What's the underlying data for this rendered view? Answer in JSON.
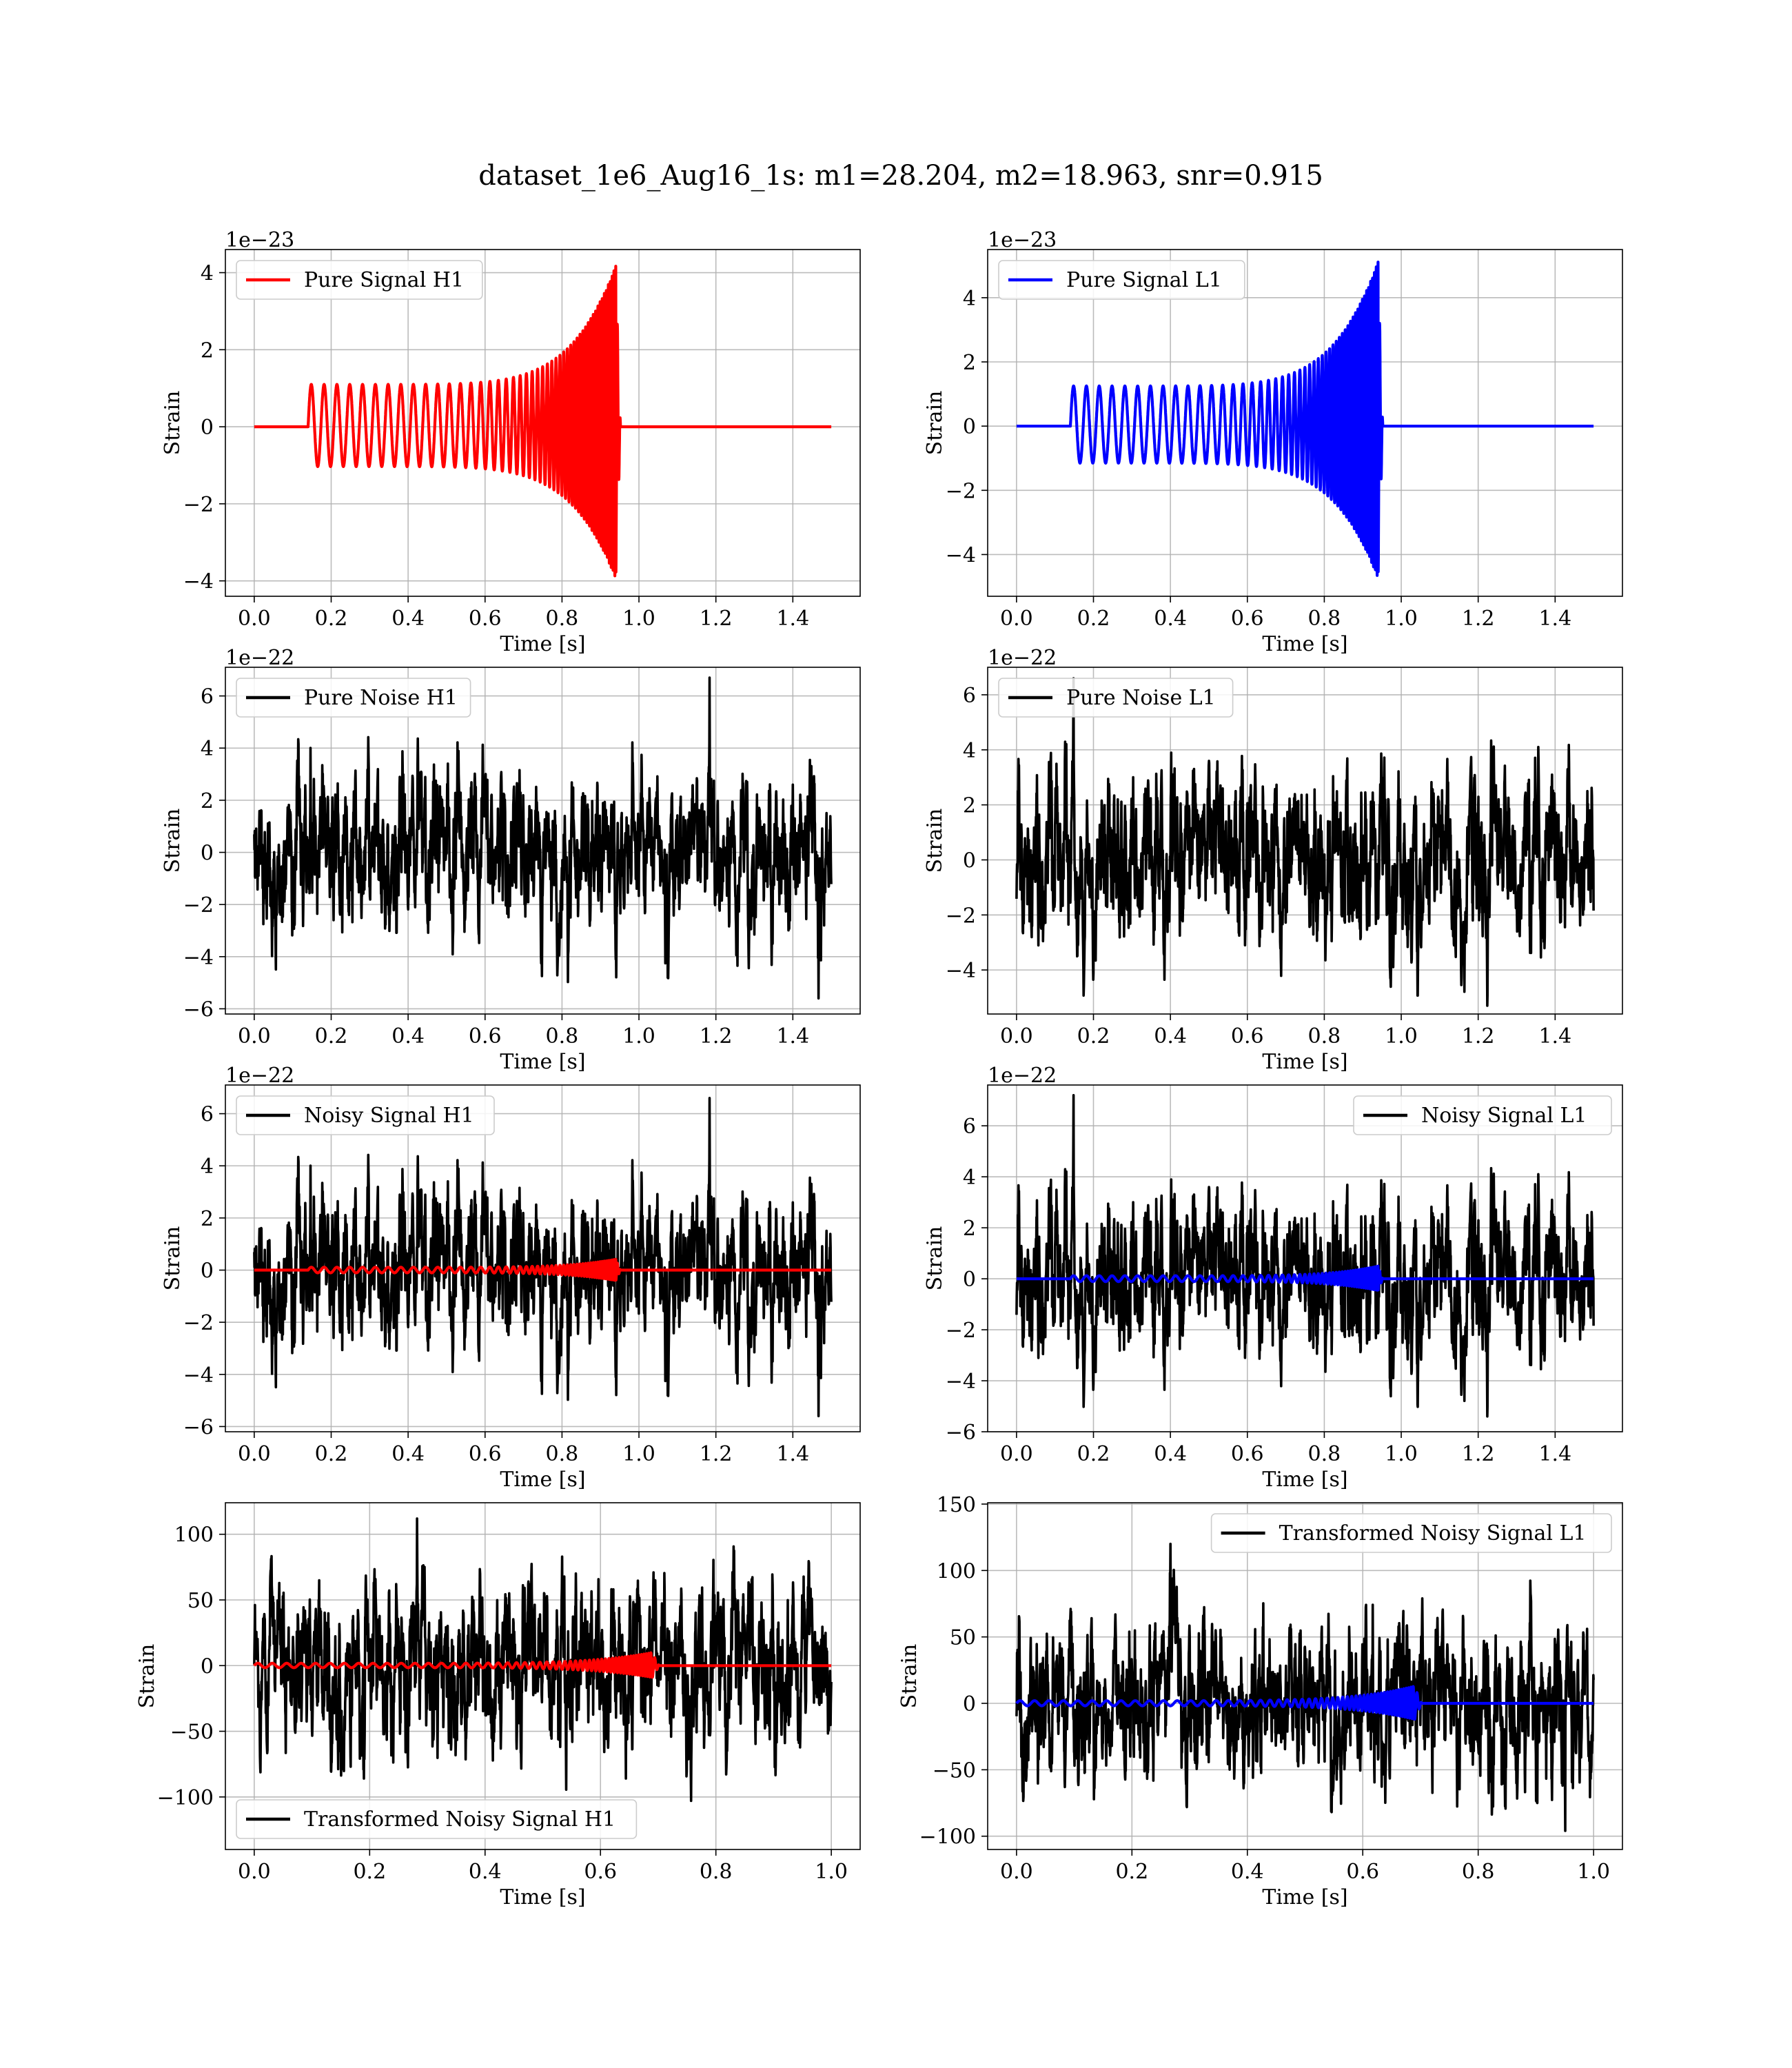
{
  "figure": {
    "suptitle": "dataset_1e6_Aug16_1s: m1=28.204, m2=18.963, snr=0.915"
  },
  "chart_data": [
    {
      "id": "pure-signal-h1",
      "type": "line",
      "kind": "signal",
      "xlabel": "Time [s]",
      "ylabel": "Strain",
      "offset_text": "1e−23",
      "xlim": [
        -0.075,
        1.575
      ],
      "ylim": [
        -4.4,
        4.6
      ],
      "xticks": [
        0.0,
        0.2,
        0.4,
        0.6,
        0.8,
        1.0,
        1.2,
        1.4
      ],
      "xtick_labels": [
        "0.0",
        "0.2",
        "0.4",
        "0.6",
        "0.8",
        "1.0",
        "1.2",
        "1.4"
      ],
      "yticks": [
        -4,
        -2,
        0,
        2,
        4
      ],
      "ytick_labels": [
        "−4",
        "−2",
        "0",
        "2",
        "4"
      ],
      "legend": {
        "position": "upper-left",
        "entries": [
          {
            "label": "Pure Signal H1",
            "color": "#ff0000"
          }
        ]
      },
      "series": [
        {
          "name": "Pure Signal H1",
          "color": "#ff0000",
          "role": "signal",
          "x_range": [
            0.0,
            1.5
          ],
          "onset": 0.14,
          "merger": 0.94,
          "amplitude_start": 1.1,
          "amplitude_peak_pos": 4.2,
          "amplitude_peak_neg": -3.95,
          "freq_start_hz": 30,
          "freq_end_hz": 220
        }
      ]
    },
    {
      "id": "pure-signal-l1",
      "type": "line",
      "kind": "signal",
      "xlabel": "Time [s]",
      "ylabel": "Strain",
      "offset_text": "1e−23",
      "xlim": [
        -0.075,
        1.575
      ],
      "ylim": [
        -5.3,
        5.5
      ],
      "xticks": [
        0.0,
        0.2,
        0.4,
        0.6,
        0.8,
        1.0,
        1.2,
        1.4
      ],
      "xtick_labels": [
        "0.0",
        "0.2",
        "0.4",
        "0.6",
        "0.8",
        "1.0",
        "1.2",
        "1.4"
      ],
      "yticks": [
        -4,
        -2,
        0,
        2,
        4
      ],
      "ytick_labels": [
        "−4",
        "−2",
        "0",
        "2",
        "4"
      ],
      "legend": {
        "position": "upper-left",
        "entries": [
          {
            "label": "Pure Signal L1",
            "color": "#0000ff"
          }
        ]
      },
      "series": [
        {
          "name": "Pure Signal L1",
          "color": "#0000ff",
          "role": "signal",
          "x_range": [
            0.0,
            1.5
          ],
          "onset": 0.14,
          "merger": 0.94,
          "amplitude_start": 1.25,
          "amplitude_peak_pos": 5.15,
          "amplitude_peak_neg": -4.75,
          "freq_start_hz": 30,
          "freq_end_hz": 220
        }
      ]
    },
    {
      "id": "pure-noise-h1",
      "type": "line",
      "kind": "noise",
      "xlabel": "Time [s]",
      "ylabel": "Strain",
      "offset_text": "1e−22",
      "xlim": [
        -0.075,
        1.575
      ],
      "ylim": [
        -6.2,
        7.1
      ],
      "xticks": [
        0.0,
        0.2,
        0.4,
        0.6,
        0.8,
        1.0,
        1.2,
        1.4
      ],
      "xtick_labels": [
        "0.0",
        "0.2",
        "0.4",
        "0.6",
        "0.8",
        "1.0",
        "1.2",
        "1.4"
      ],
      "yticks": [
        -6,
        -4,
        -2,
        0,
        2,
        4,
        6
      ],
      "ytick_labels": [
        "−6",
        "−4",
        "−2",
        "0",
        "2",
        "4",
        "6"
      ],
      "legend": {
        "position": "upper-left",
        "entries": [
          {
            "label": "Pure Noise H1",
            "color": "#000000"
          }
        ]
      },
      "series": [
        {
          "name": "Pure Noise H1",
          "color": "#000000",
          "role": "noise",
          "x_range": [
            0.0,
            1.5
          ],
          "noise_sigma": 1.5,
          "noise_max": 6.7,
          "noise_min": -5.6,
          "seed": 11
        }
      ]
    },
    {
      "id": "pure-noise-l1",
      "type": "line",
      "kind": "noise",
      "xlabel": "Time [s]",
      "ylabel": "Strain",
      "offset_text": "1e−22",
      "xlim": [
        -0.075,
        1.575
      ],
      "ylim": [
        -5.6,
        7.0
      ],
      "xticks": [
        0.0,
        0.2,
        0.4,
        0.6,
        0.8,
        1.0,
        1.2,
        1.4
      ],
      "xtick_labels": [
        "0.0",
        "0.2",
        "0.4",
        "0.6",
        "0.8",
        "1.0",
        "1.2",
        "1.4"
      ],
      "yticks": [
        -4,
        -2,
        0,
        2,
        4,
        6
      ],
      "ytick_labels": [
        "−4",
        "−2",
        "0",
        "2",
        "4",
        "6"
      ],
      "legend": {
        "position": "upper-left",
        "entries": [
          {
            "label": "Pure Noise L1",
            "color": "#000000"
          }
        ]
      },
      "series": [
        {
          "name": "Pure Noise L1",
          "color": "#000000",
          "role": "noise",
          "x_range": [
            0.0,
            1.5
          ],
          "noise_sigma": 1.6,
          "noise_max": 6.6,
          "noise_min": -5.3,
          "seed": 23
        }
      ]
    },
    {
      "id": "noisy-signal-h1",
      "type": "line",
      "kind": "noisy",
      "xlabel": "Time [s]",
      "ylabel": "Strain",
      "offset_text": "1e−22",
      "xlim": [
        -0.075,
        1.575
      ],
      "ylim": [
        -6.2,
        7.1
      ],
      "xticks": [
        0.0,
        0.2,
        0.4,
        0.6,
        0.8,
        1.0,
        1.2,
        1.4
      ],
      "xtick_labels": [
        "0.0",
        "0.2",
        "0.4",
        "0.6",
        "0.8",
        "1.0",
        "1.2",
        "1.4"
      ],
      "yticks": [
        -6,
        -4,
        -2,
        0,
        2,
        4,
        6
      ],
      "ytick_labels": [
        "−6",
        "−4",
        "−2",
        "0",
        "2",
        "4",
        "6"
      ],
      "legend": {
        "position": "upper-left",
        "entries": [
          {
            "label": "Noisy Signal H1",
            "color": "#000000"
          }
        ]
      },
      "series": [
        {
          "name": "Noisy Signal H1",
          "color": "#000000",
          "role": "noise",
          "x_range": [
            0.0,
            1.5
          ],
          "noise_sigma": 1.5,
          "noise_max": 6.6,
          "noise_min": -5.6,
          "seed": 11
        },
        {
          "color": "#ff0000",
          "role": "signal",
          "x_range": [
            0.0,
            1.5
          ],
          "onset": 0.14,
          "merger": 0.94,
          "amplitude_start": 0.11,
          "amplitude_peak_pos": 0.42,
          "amplitude_peak_neg": -0.4,
          "freq_start_hz": 30,
          "freq_end_hz": 220
        }
      ]
    },
    {
      "id": "noisy-signal-l1",
      "type": "line",
      "kind": "noisy",
      "xlabel": "Time [s]",
      "ylabel": "Strain",
      "offset_text": "1e−22",
      "xlim": [
        -0.075,
        1.575
      ],
      "ylim": [
        -6.0,
        7.6
      ],
      "xticks": [
        0.0,
        0.2,
        0.4,
        0.6,
        0.8,
        1.0,
        1.2,
        1.4
      ],
      "xtick_labels": [
        "0.0",
        "0.2",
        "0.4",
        "0.6",
        "0.8",
        "1.0",
        "1.2",
        "1.4"
      ],
      "yticks": [
        -6,
        -4,
        -2,
        0,
        2,
        4,
        6
      ],
      "ytick_labels": [
        "−6",
        "−4",
        "−2",
        "0",
        "2",
        "4",
        "6"
      ],
      "legend": {
        "position": "upper-right",
        "entries": [
          {
            "label": "Noisy Signal L1",
            "color": "#000000"
          }
        ]
      },
      "series": [
        {
          "name": "Noisy Signal L1",
          "color": "#000000",
          "role": "noise",
          "x_range": [
            0.0,
            1.5
          ],
          "noise_sigma": 1.6,
          "noise_max": 7.2,
          "noise_min": -5.4,
          "seed": 23
        },
        {
          "color": "#0000ff",
          "role": "signal",
          "x_range": [
            0.0,
            1.5
          ],
          "onset": 0.14,
          "merger": 0.94,
          "amplitude_start": 0.12,
          "amplitude_peak_pos": 0.5,
          "amplitude_peak_neg": -0.46,
          "freq_start_hz": 30,
          "freq_end_hz": 220
        }
      ]
    },
    {
      "id": "transformed-noisy-signal-h1",
      "type": "line",
      "kind": "noisy",
      "xlabel": "Time [s]",
      "ylabel": "Strain",
      "offset_text": "",
      "xlim": [
        -0.05,
        1.05
      ],
      "ylim": [
        -140,
        124
      ],
      "xticks": [
        0.0,
        0.2,
        0.4,
        0.6,
        0.8,
        1.0
      ],
      "xtick_labels": [
        "0.0",
        "0.2",
        "0.4",
        "0.6",
        "0.8",
        "1.0"
      ],
      "yticks": [
        -100,
        -50,
        0,
        50,
        100
      ],
      "ytick_labels": [
        "−100",
        "−50",
        "0",
        "50",
        "100"
      ],
      "legend": {
        "position": "lower-left",
        "entries": [
          {
            "label": "Transformed Noisy Signal H1",
            "color": "#000000"
          }
        ]
      },
      "series": [
        {
          "name": "Transformed Noisy Signal H1",
          "color": "#000000",
          "role": "noise",
          "x_range": [
            0.0,
            1.0
          ],
          "noise_sigma": 32,
          "noise_max": 112,
          "noise_min": -103,
          "seed": 37
        },
        {
          "color": "#ff0000",
          "role": "signal",
          "x_range": [
            0.0,
            1.0
          ],
          "onset": 0.0,
          "merger": 0.69,
          "amplitude_start": 1.8,
          "amplitude_peak_pos": 10,
          "amplitude_peak_neg": -9,
          "freq_start_hz": 40,
          "freq_end_hz": 260
        }
      ]
    },
    {
      "id": "transformed-noisy-signal-l1",
      "type": "line",
      "kind": "noisy",
      "xlabel": "Time [s]",
      "ylabel": "Strain",
      "offset_text": "",
      "xlim": [
        -0.05,
        1.05
      ],
      "ylim": [
        -110,
        151
      ],
      "xticks": [
        0.0,
        0.2,
        0.4,
        0.6,
        0.8,
        1.0
      ],
      "xtick_labels": [
        "0.0",
        "0.2",
        "0.4",
        "0.6",
        "0.8",
        "1.0"
      ],
      "yticks": [
        -100,
        -50,
        0,
        50,
        100,
        150
      ],
      "ytick_labels": [
        "−100",
        "−50",
        "0",
        "50",
        "100",
        "150"
      ],
      "legend": {
        "position": "upper-right",
        "entries": [
          {
            "label": "Transformed Noisy Signal L1",
            "color": "#000000"
          }
        ]
      },
      "series": [
        {
          "name": "Transformed Noisy Signal L1",
          "color": "#000000",
          "role": "noise",
          "x_range": [
            0.0,
            1.0
          ],
          "noise_sigma": 30,
          "noise_max": 120,
          "noise_min": -96,
          "seed": 53
        },
        {
          "color": "#0000ff",
          "role": "signal",
          "x_range": [
            0.0,
            1.0
          ],
          "onset": 0.0,
          "merger": 0.69,
          "amplitude_start": 2.0,
          "amplitude_peak_pos": 13,
          "amplitude_peak_neg": -12,
          "freq_start_hz": 40,
          "freq_end_hz": 260
        }
      ]
    }
  ]
}
